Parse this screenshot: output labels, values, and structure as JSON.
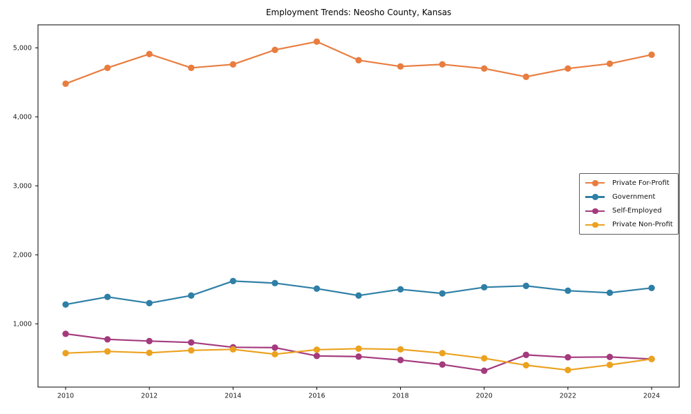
{
  "chart_data": {
    "type": "line",
    "title": "Employment Trends: Neosho County, Kansas",
    "xlabel": "",
    "ylabel": "",
    "x": [
      2010,
      2011,
      2012,
      2013,
      2014,
      2015,
      2016,
      2017,
      2018,
      2019,
      2020,
      2021,
      2022,
      2023,
      2024
    ],
    "series": [
      {
        "name": "Private For-Profit",
        "color": "#e87d3f",
        "values": [
          4480,
          4710,
          4910,
          4710,
          4760,
          4970,
          5090,
          4820,
          4730,
          4760,
          4700,
          4580,
          4700,
          4770,
          4900
        ]
      },
      {
        "name": "Government",
        "color": "#2e7fa6",
        "values": [
          1280,
          1390,
          1300,
          1410,
          1620,
          1590,
          1510,
          1410,
          1500,
          1440,
          1530,
          1550,
          1480,
          1450,
          1520
        ]
      },
      {
        "name": "Self-Employed",
        "color": "#a43a7d",
        "values": [
          855,
          775,
          750,
          730,
          660,
          655,
          535,
          525,
          475,
          410,
          320,
          550,
          515,
          520,
          490
        ]
      },
      {
        "name": "Private Non-Profit",
        "color": "#eba21f",
        "values": [
          575,
          600,
          580,
          615,
          630,
          560,
          625,
          640,
          630,
          575,
          500,
          400,
          330,
          405,
          490
        ]
      }
    ],
    "xticks": {
      "values": [
        2010,
        2012,
        2014,
        2016,
        2018,
        2020,
        2022,
        2024
      ],
      "labels": [
        "2010",
        "2012",
        "2014",
        "2016",
        "2018",
        "2020",
        "2022",
        "2024"
      ]
    },
    "yticks": {
      "values": [
        1000,
        2000,
        3000,
        4000,
        5000
      ],
      "labels": [
        "1,000",
        "2,000",
        "3,000",
        "4,000",
        "5,000"
      ]
    },
    "xlim": [
      2009.34,
      2024.66
    ],
    "ylim": [
      83,
      5333
    ],
    "grid": false,
    "legend_position": "center-right"
  }
}
